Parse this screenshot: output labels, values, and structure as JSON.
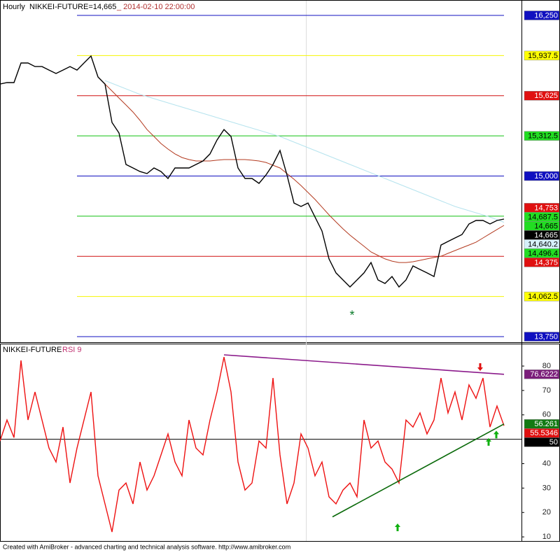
{
  "chart_data": [
    {
      "type": "line",
      "title": "Hourly",
      "date_label": "_ 2014-02-10 22:00:00",
      "xlim": [
        0,
        74.5
      ],
      "ylim": [
        13701,
        16370
      ],
      "series": [
        {
          "name": "NIKKEI-FUTURE=14,665",
          "color": "#000000",
          "x": [
            0,
            1,
            2,
            3,
            4,
            5,
            6,
            7,
            8,
            9,
            10,
            11,
            12,
            13,
            14,
            15,
            16,
            17,
            18,
            19,
            20,
            21,
            22,
            23,
            24,
            25,
            26,
            27,
            28,
            29,
            30,
            31,
            32,
            33,
            34,
            35,
            36,
            37,
            38,
            39,
            40,
            41,
            42,
            43,
            44,
            45,
            46,
            47,
            48,
            49,
            50,
            51,
            52,
            53,
            54,
            55,
            56,
            57,
            58,
            59,
            60,
            61,
            62,
            63,
            64,
            65,
            66,
            67,
            68,
            69,
            70,
            71,
            72
          ],
          "values": [
            15716,
            15727,
            15727,
            15880,
            15880,
            15852,
            15852,
            15825,
            15798,
            15825,
            15852,
            15825,
            15880,
            15934,
            15771,
            15716,
            15417,
            15335,
            15090,
            15063,
            15035,
            15019,
            15063,
            15035,
            14981,
            15063,
            15063,
            15063,
            15090,
            15117,
            15172,
            15280,
            15362,
            15308,
            15063,
            14981,
            14981,
            14943,
            15008,
            15090,
            15199,
            15008,
            14790,
            14763,
            14790,
            14681,
            14572,
            14355,
            14246,
            14191,
            14137,
            14191,
            14246,
            14327,
            14191,
            14164,
            14218,
            14137,
            14191,
            14300,
            14273,
            14246,
            14218,
            14463,
            14491,
            14518,
            14545,
            14627,
            14654,
            14654,
            14627,
            14654,
            14665
          ]
        },
        {
          "color": "#b33a1f",
          "x": [
            14,
            15,
            16,
            17,
            18,
            19,
            20,
            21,
            22,
            23,
            24,
            25,
            26,
            27,
            28,
            29,
            30,
            31,
            32,
            33,
            34,
            35,
            36,
            37,
            38,
            39,
            40,
            41,
            42,
            43,
            44,
            45,
            46,
            47,
            48,
            49,
            50,
            51,
            52,
            53,
            54,
            55,
            56,
            57,
            58,
            59,
            60,
            61,
            62,
            63,
            64,
            65,
            66,
            67,
            68,
            69,
            70,
            71,
            72
          ],
          "values": [
            15771,
            15716,
            15662,
            15607,
            15553,
            15498,
            15433,
            15362,
            15308,
            15253,
            15210,
            15172,
            15144,
            15128,
            15117,
            15117,
            15117,
            15123,
            15128,
            15128,
            15128,
            15128,
            15123,
            15117,
            15106,
            15084,
            15063,
            15019,
            14975,
            14926,
            14872,
            14818,
            14758,
            14698,
            14643,
            14589,
            14540,
            14496,
            14453,
            14409,
            14382,
            14355,
            14338,
            14327,
            14327,
            14333,
            14344,
            14355,
            14366,
            14376,
            14398,
            14420,
            14442,
            14463,
            14485,
            14518,
            14551,
            14584,
            14616
          ]
        },
        {
          "color": "#b5e3ee",
          "x": [
            15,
            20,
            25,
            30,
            35,
            40,
            45,
            50,
            55,
            60,
            65,
            70,
            72
          ],
          "values": [
            15743,
            15635,
            15553,
            15471,
            15389,
            15308,
            15199,
            15090,
            14981,
            14872,
            14763,
            14681,
            14640.2
          ]
        }
      ],
      "levels": [
        {
          "value": 16250,
          "color": "#1010c0"
        },
        {
          "value": 15937.5,
          "color": "#f5f500"
        },
        {
          "value": 15625,
          "color": "#d01010"
        },
        {
          "value": 15312.5,
          "color": "#10c010"
        },
        {
          "value": 15000,
          "color": "#1010c0"
        },
        {
          "value": 14687.5,
          "color": "#10c010"
        },
        {
          "value": 14375,
          "color": "#d01010"
        },
        {
          "value": 14062.5,
          "color": "#f5f500"
        },
        {
          "value": 13750,
          "color": "#1010c0"
        }
      ],
      "levels_start": 11,
      "levels_end": 72,
      "axis_labels": [
        {
          "value": 16250,
          "label": "16,250",
          "color": "#1010c0",
          "text_color": "#ffffff"
        },
        {
          "value": 15937.5,
          "label": "15,937.5",
          "color": "#ffff00",
          "text_color": "#000000"
        },
        {
          "value": 15625,
          "label": "15,625",
          "color": "#e01010",
          "text_color": "#ffffff"
        },
        {
          "value": 15312.5,
          "label": "15,312.5",
          "color": "#22dd22",
          "text_color": "#000000"
        },
        {
          "value": 15000,
          "label": "15,000",
          "color": "#1010c0",
          "text_color": "#ffffff"
        },
        {
          "value": 14753,
          "label": "14,753",
          "color": "#e01010",
          "text_color": "#ffffff"
        },
        {
          "value": 14687.5,
          "label": "14,687.5",
          "color": "#22dd22",
          "text_color": "#000000"
        },
        {
          "value": 14665,
          "label": "14,665",
          "color": "#22dd22",
          "text_color": "#000000"
        },
        {
          "value": 14665,
          "label": "14,665",
          "color": "#000000",
          "text_color": "#ffffff"
        },
        {
          "value": 14640.2,
          "label": "14,640.2",
          "color": "#d6f0fa",
          "text_color": "#000000"
        },
        {
          "value": 14496.4,
          "label": "14,496.4",
          "color": "#22dd22",
          "text_color": "#000000"
        },
        {
          "value": 14375,
          "label": "14,375",
          "color": "#e01010",
          "text_color": "#ffffff"
        },
        {
          "value": 14062.5,
          "label": "14,062.5",
          "color": "#ffff00",
          "text_color": "#000000"
        },
        {
          "value": 13750,
          "label": "13,750",
          "color": "#1010c0",
          "text_color": "#ffffff"
        }
      ],
      "annotations": [
        {
          "text": "*",
          "x": 50.3,
          "y": 13908,
          "color": "#0a7a2a"
        }
      ]
    },
    {
      "type": "line",
      "title": "NIKKEI-FUTURE",
      "xlim": [
        0,
        74.5
      ],
      "ylim": [
        8.6,
        88.9
      ],
      "yticks": [
        10,
        20,
        30,
        40,
        60,
        70,
        80
      ],
      "reference_line": {
        "value": 50,
        "color": "#000000"
      },
      "series": [
        {
          "name": "RSI 9",
          "color": "#ee1111",
          "x": [
            0,
            1,
            2,
            3,
            4,
            5,
            6,
            7,
            8,
            9,
            10,
            11,
            12,
            13,
            14,
            15,
            16,
            17,
            18,
            19,
            20,
            21,
            22,
            23,
            24,
            25,
            26,
            27,
            28,
            29,
            30,
            31,
            32,
            33,
            34,
            35,
            36,
            37,
            38,
            39,
            40,
            41,
            42,
            43,
            44,
            45,
            46,
            47,
            48,
            49,
            50,
            51,
            52,
            53,
            54,
            55,
            56,
            57,
            58,
            59,
            60,
            61,
            62,
            63,
            64,
            65,
            66,
            67,
            68,
            69,
            70,
            71,
            72
          ],
          "values": [
            49.3,
            57.9,
            50.7,
            82.3,
            57.9,
            69.4,
            57.9,
            46.4,
            40.7,
            55,
            32.1,
            46.4,
            57.9,
            69.4,
            35,
            23.5,
            12,
            29.2,
            32.1,
            23.5,
            40.7,
            29.2,
            35,
            43.6,
            52.2,
            40.7,
            35,
            57.9,
            46.4,
            43.6,
            57.9,
            69.4,
            83.7,
            69.4,
            40.7,
            29.2,
            32.1,
            49.3,
            46.4,
            75.1,
            43.6,
            23.5,
            32.1,
            52.2,
            46.4,
            35,
            40.7,
            26.4,
            23.5,
            29.2,
            32.1,
            26.4,
            57.9,
            46.4,
            49.3,
            40.7,
            37.8,
            32.1,
            57.9,
            55,
            60.8,
            52.2,
            57.9,
            75.1,
            60.8,
            69.4,
            57.9,
            72.3,
            66.8,
            75.1,
            55,
            63.6,
            55.5346
          ]
        }
      ],
      "trendlines": [
        {
          "x": [
            32,
            72
          ],
          "values": [
            84.6,
            76.6222
          ],
          "color": "#8b1a8b"
        },
        {
          "x": [
            47.5,
            72
          ],
          "values": [
            18.2,
            56.261
          ],
          "color": "#0a6a0a"
        }
      ],
      "arrows": [
        {
          "x": 68.6,
          "y": 78,
          "direction": "down",
          "color": "#e01010"
        },
        {
          "x": 56.8,
          "y": 15.5,
          "direction": "up",
          "color": "#10b010"
        },
        {
          "x": 69.8,
          "y": 50.5,
          "direction": "up",
          "color": "#10b010"
        },
        {
          "x": 70.9,
          "y": 53.5,
          "direction": "up",
          "color": "#10b010"
        }
      ],
      "axis_labels": [
        {
          "value": 76.6222,
          "color": "#7b1e7a",
          "text_color": "#ffffff"
        },
        {
          "value": 56.261,
          "color": "#137a13",
          "text_color": "#ffffff"
        },
        {
          "value": 55.5346,
          "color": "#e01010",
          "text_color": "#ffffff"
        },
        {
          "value": 50,
          "color": "#000000",
          "text_color": "#ffffff"
        }
      ]
    }
  ],
  "footer": "Created with AmiBroker - advanced charting and technical analysis software. http://www.amibroker.com"
}
